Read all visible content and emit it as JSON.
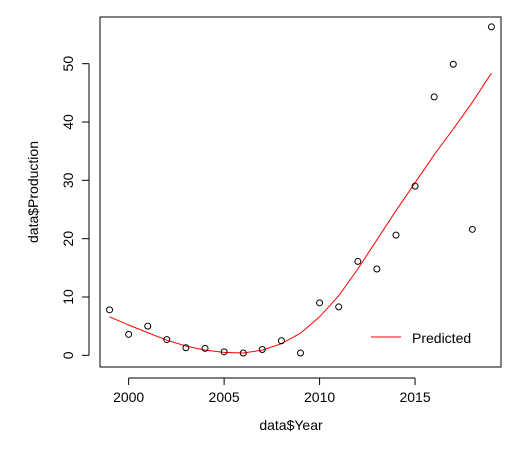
{
  "chart_data": {
    "type": "scatter",
    "title": "",
    "xlabel": "data$Year",
    "ylabel": "data$Production",
    "xlim": [
      1998.5,
      2019.5
    ],
    "ylim": [
      -2,
      58
    ],
    "x_ticks": [
      2000,
      2005,
      2010,
      2015
    ],
    "y_ticks": [
      0,
      10,
      20,
      30,
      40,
      50
    ],
    "x_tick_labels": [
      "2000",
      "2005",
      "2010",
      "2015"
    ],
    "y_tick_labels": [
      "0",
      "10",
      "20",
      "30",
      "40",
      "50"
    ],
    "grid": false,
    "legend_position": "bottom-right",
    "series": [
      {
        "kind": "points",
        "x": [
          1999,
          2000,
          2001,
          2002,
          2003,
          2004,
          2005,
          2006,
          2007,
          2008,
          2009,
          2010,
          2011,
          2012,
          2013,
          2014,
          2015,
          2016,
          2017,
          2018,
          2019
        ],
        "y": [
          7.8,
          3.6,
          5.0,
          2.7,
          1.3,
          1.2,
          0.6,
          0.4,
          1.0,
          2.5,
          0.4,
          9.0,
          8.3,
          16.1,
          14.8,
          20.6,
          29.0,
          44.3,
          49.9,
          21.6,
          56.3
        ]
      },
      {
        "kind": "line",
        "name": "Predicted",
        "color": "#ff0000",
        "x": [
          1999,
          2000,
          2001,
          2002,
          2003,
          2004,
          2005,
          2006,
          2007,
          2008,
          2009,
          2010,
          2011,
          2012,
          2013,
          2014,
          2015,
          2016,
          2017,
          2018,
          2019
        ],
        "y": [
          6.6,
          5.2,
          3.9,
          2.6,
          1.6,
          0.9,
          0.5,
          0.4,
          0.9,
          2.0,
          3.8,
          6.6,
          10.2,
          14.8,
          19.8,
          24.8,
          29.6,
          34.4,
          38.8,
          43.4,
          48.4
        ]
      }
    ]
  }
}
